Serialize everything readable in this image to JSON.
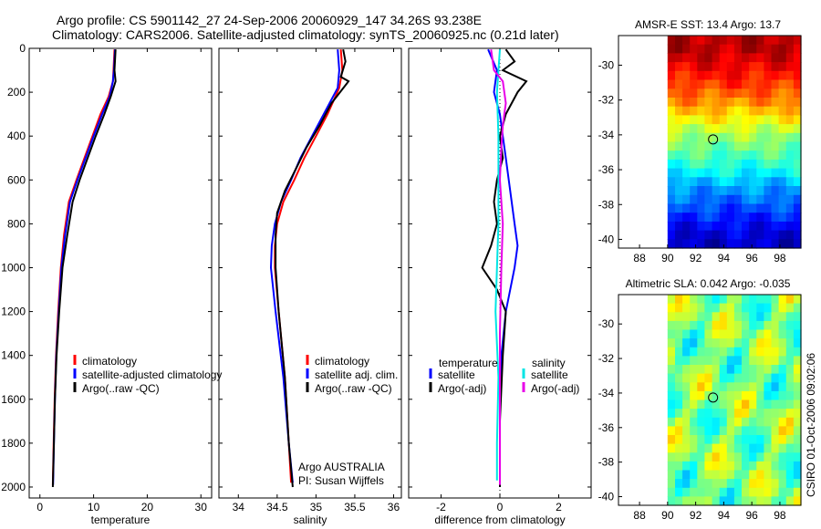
{
  "figure": {
    "title_line1": "Argo profile: CS 5901142_27 24-Sep-2006 20060929_147 34.26S 93.238E",
    "title_line2": "Climatology: CARS2006. Satellite-adjusted climatology: synTS_20060925.nc (0.21d later)",
    "credit": "Argo AUSTRALIA",
    "pi": "PI: Susan Wijffels",
    "timestamp": "CSIRO 01-Oct-2006 09:02:06"
  },
  "colors": {
    "climatology": "#ff0000",
    "satellite": "#0000ff",
    "argo": "#000000",
    "sal_satellite": "#00e5e5",
    "sal_argo": "#e800e8"
  },
  "chart_data": [
    {
      "type": "line",
      "id": "temperature",
      "xlabel": "temperature",
      "ylabel": "",
      "xlim": [
        -2,
        32
      ],
      "ylim": [
        2050,
        0
      ],
      "xticks": [
        0,
        10,
        20,
        30
      ],
      "yticks": [
        0,
        200,
        400,
        600,
        800,
        1000,
        1200,
        1400,
        1600,
        1800,
        2000
      ],
      "legend": [
        "climatology",
        "satellite-adjusted climatology",
        "Argo(..raw -QC)"
      ],
      "series": [
        {
          "name": "climatology",
          "color": "#ff0000",
          "x": [
            13.9,
            13.7,
            13.6,
            12.8,
            11.3,
            9.8,
            8.3,
            6.8,
            5.4,
            4.5,
            3.9,
            3.4,
            3.0,
            2.75,
            2.55,
            2.4
          ],
          "y": [
            5,
            100,
            150,
            220,
            300,
            400,
            500,
            600,
            700,
            850,
            1000,
            1200,
            1400,
            1600,
            1800,
            1990
          ]
        },
        {
          "name": "satellite-adjusted climatology",
          "color": "#0000ff",
          "x": [
            14.0,
            13.8,
            13.6,
            13.0,
            11.6,
            10.0,
            8.5,
            7.0,
            5.6,
            4.7,
            4.0,
            3.5,
            3.05,
            2.8,
            2.6,
            2.45
          ],
          "y": [
            5,
            100,
            150,
            220,
            300,
            400,
            500,
            600,
            700,
            850,
            1000,
            1200,
            1400,
            1600,
            1800,
            1990
          ]
        },
        {
          "name": "Argo(..raw -QC)",
          "color": "#000000",
          "x": [
            14.1,
            13.9,
            14.1,
            13.2,
            12.0,
            10.4,
            8.9,
            7.4,
            6.1,
            5.1,
            4.2,
            3.6,
            3.1,
            2.8,
            2.6,
            2.4
          ],
          "y": [
            5,
            100,
            150,
            220,
            300,
            400,
            500,
            600,
            700,
            850,
            1000,
            1200,
            1400,
            1600,
            1800,
            2000
          ]
        }
      ]
    },
    {
      "type": "line",
      "id": "salinity",
      "xlabel": "salinity",
      "ylabel": "",
      "xlim": [
        33.75,
        36.1
      ],
      "ylim": [
        2050,
        0
      ],
      "xticks": [
        34,
        34.5,
        35,
        35.5,
        36
      ],
      "legend": [
        "climatology",
        "satellite adj. clim.",
        "Argo(..raw -QC)"
      ],
      "series": [
        {
          "name": "climatology",
          "color": "#ff0000",
          "x": [
            35.32,
            35.34,
            35.3,
            35.15,
            35.0,
            34.85,
            34.72,
            34.58,
            34.5,
            34.47,
            34.47,
            34.52,
            34.6,
            34.65,
            34.68
          ],
          "y": [
            5,
            100,
            180,
            300,
            400,
            500,
            600,
            700,
            800,
            900,
            1000,
            1200,
            1500,
            1800,
            1980
          ]
        },
        {
          "name": "satellite adj. clim.",
          "color": "#0000ff",
          "x": [
            35.28,
            35.3,
            35.28,
            35.1,
            34.95,
            34.8,
            34.68,
            34.55,
            34.47,
            34.43,
            34.42,
            34.48,
            34.58,
            34.65,
            34.7
          ],
          "y": [
            5,
            100,
            180,
            300,
            400,
            500,
            600,
            700,
            800,
            900,
            1000,
            1200,
            1500,
            1800,
            1980
          ]
        },
        {
          "name": "Argo(..raw -QC)",
          "color": "#000000",
          "x": [
            35.35,
            35.38,
            35.32,
            35.42,
            35.2,
            35.05,
            34.88,
            34.74,
            34.6,
            34.5,
            34.48,
            34.48,
            34.52,
            34.6,
            34.65,
            34.7
          ],
          "y": [
            5,
            60,
            130,
            150,
            250,
            350,
            450,
            550,
            650,
            750,
            850,
            1000,
            1200,
            1500,
            1800,
            2000
          ]
        }
      ]
    },
    {
      "type": "line",
      "id": "difference",
      "xlabel": "difference from climatology",
      "ylabel": "",
      "xlim": [
        -3.1,
        3.1
      ],
      "ylim": [
        2050,
        0
      ],
      "xticks": [
        -2,
        0,
        2
      ],
      "legend_titles": [
        "temperature",
        "salinity"
      ],
      "legend": [
        "satellite",
        "Argo(-adj)",
        "satellite",
        "Argo(-adj)"
      ],
      "series": [
        {
          "name": "satellite",
          "group": "temperature",
          "color": "#0000ff",
          "x": [
            -0.4,
            -0.1,
            -0.2,
            0.0,
            0.1,
            0.2,
            0.3,
            0.4,
            0.5,
            0.6,
            0.5,
            0.2,
            0.05,
            0.0,
            0.0,
            0.0
          ],
          "y": [
            5,
            100,
            200,
            300,
            400,
            500,
            600,
            700,
            800,
            900,
            1000,
            1200,
            1400,
            1600,
            1800,
            2000
          ]
        },
        {
          "name": "Argo(-adj)",
          "group": "temperature",
          "color": "#000000",
          "x": [
            0.2,
            0.5,
            0.1,
            0.9,
            0.6,
            0.2,
            0.0,
            0.1,
            -0.1,
            -0.2,
            -0.1,
            -0.3,
            -0.6,
            -0.1,
            0.2,
            0.1,
            0.0,
            0.0
          ],
          "y": [
            5,
            60,
            100,
            150,
            200,
            300,
            400,
            500,
            600,
            700,
            800,
            900,
            1000,
            1100,
            1200,
            1400,
            1700,
            2000
          ]
        },
        {
          "name": "satellite",
          "group": "salinity",
          "color": "#00e5e5",
          "x": [
            0.0,
            -0.05,
            -0.1,
            -0.05,
            -0.05,
            -0.05,
            -0.1,
            -0.15,
            -0.05,
            -0.1,
            -0.1
          ],
          "y": [
            5,
            100,
            200,
            400,
            600,
            800,
            1000,
            1200,
            1500,
            1800,
            1970
          ]
        },
        {
          "name": "Argo(-adj)",
          "group": "salinity",
          "color": "#e800e8",
          "x": [
            -0.3,
            -0.2,
            0.1,
            0.2,
            0.1,
            0.05,
            0.0,
            0.1,
            0.05,
            0.0,
            0.0,
            0.0
          ],
          "y": [
            5,
            100,
            150,
            250,
            350,
            450,
            600,
            800,
            1000,
            1300,
            1700,
            1990
          ]
        }
      ]
    },
    {
      "type": "heatmap",
      "id": "sst",
      "title": "AMSR-E SST: 13.4 Argo: 13.7",
      "xlim": [
        86.5,
        99.5
      ],
      "ylim": [
        -40.5,
        -28.3
      ],
      "xticks": [
        88,
        90,
        92,
        94,
        96,
        98
      ],
      "yticks": [
        -30,
        -32,
        -34,
        -36,
        -38,
        -40
      ],
      "data_x_range": [
        90,
        99.5
      ],
      "marker": {
        "x": 93.238,
        "y": -34.26
      },
      "rows": [
        {
          "y": -29.0,
          "value": 17.5
        },
        {
          "y": -30.0,
          "value": 17.0
        },
        {
          "y": -31.0,
          "value": 16.4
        },
        {
          "y": -32.0,
          "value": 15.6
        },
        {
          "y": -33.0,
          "value": 14.6
        },
        {
          "y": -34.0,
          "value": 13.6
        },
        {
          "y": -35.0,
          "value": 12.9
        },
        {
          "y": -36.0,
          "value": 12.2
        },
        {
          "y": -37.0,
          "value": 11.2
        },
        {
          "y": -38.0,
          "value": 10.5
        },
        {
          "y": -39.0,
          "value": 9.8
        },
        {
          "y": -40.0,
          "value": 9.2
        }
      ]
    },
    {
      "type": "heatmap",
      "id": "sla",
      "title": "Altimetric SLA: 0.042 Argo: -0.035",
      "xlim": [
        86.5,
        99.5
      ],
      "ylim": [
        -40.5,
        -28.3
      ],
      "xticks": [
        88,
        90,
        92,
        94,
        96,
        98
      ],
      "yticks": [
        -30,
        -32,
        -34,
        -36,
        -38,
        -40
      ],
      "data_x_range": [
        90,
        99.5
      ],
      "marker": {
        "x": 93.238,
        "y": -34.26
      }
    }
  ]
}
